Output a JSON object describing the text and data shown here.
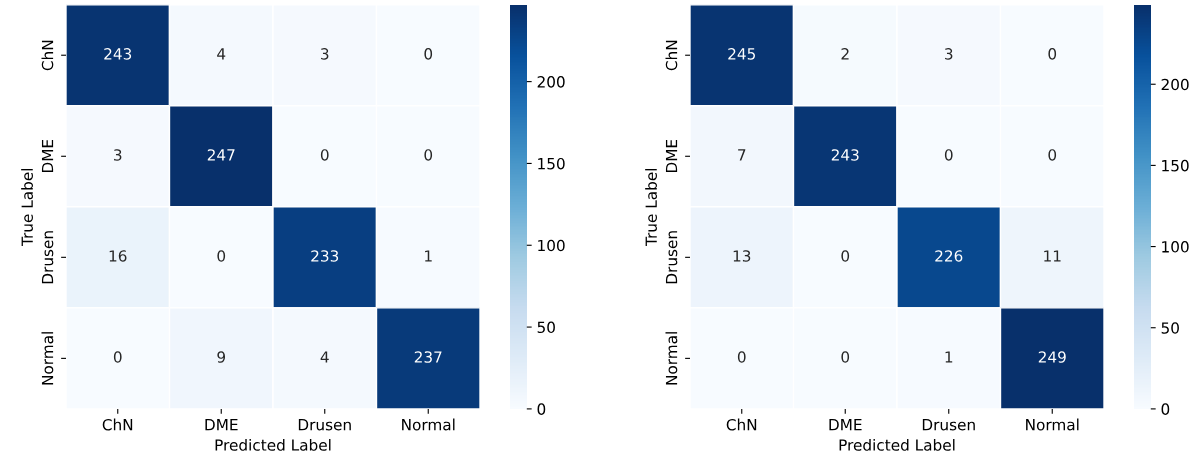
{
  "chart_data": [
    {
      "type": "heatmap",
      "xlabel": "Predicted Label",
      "ylabel": "True Label",
      "categories": [
        "ChN",
        "DME",
        "Drusen",
        "Normal"
      ],
      "y_categories": [
        "ChN",
        "DME",
        "Drusen",
        "Normal"
      ],
      "cells": [
        [
          243,
          4,
          3,
          0
        ],
        [
          3,
          247,
          0,
          0
        ],
        [
          16,
          0,
          233,
          1
        ],
        [
          0,
          9,
          4,
          237
        ]
      ],
      "clim": [
        0,
        247
      ],
      "cticks": [
        0,
        50,
        100,
        150,
        200
      ],
      "data_labels": true
    },
    {
      "type": "heatmap",
      "xlabel": "Predicted Label",
      "ylabel": "True Label",
      "categories": [
        "ChN",
        "DME",
        "Drusen",
        "Normal"
      ],
      "y_categories": [
        "ChN",
        "DME",
        "Drusen",
        "Normal"
      ],
      "cells": [
        [
          245,
          2,
          3,
          0
        ],
        [
          7,
          243,
          0,
          0
        ],
        [
          13,
          0,
          226,
          11
        ],
        [
          0,
          0,
          1,
          249
        ]
      ],
      "clim": [
        0,
        249
      ],
      "cticks": [
        0,
        50,
        100,
        150,
        200
      ],
      "data_labels": true
    }
  ]
}
